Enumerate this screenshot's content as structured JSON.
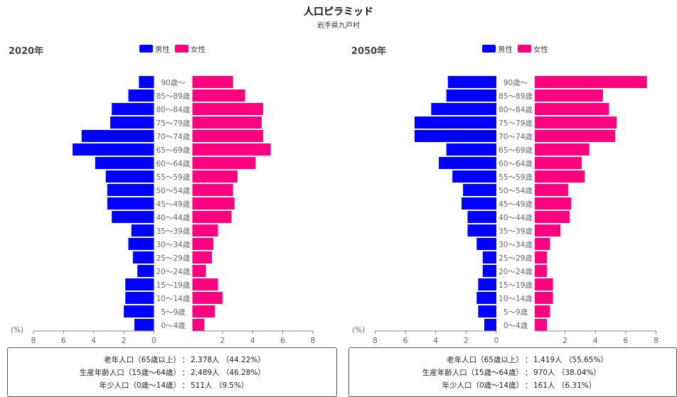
{
  "title": "人口ピラミッド",
  "subtitle": "岩手県九戸村",
  "axis_unit": "(%)",
  "legend": {
    "male": "男性",
    "female": "女性"
  },
  "colors": {
    "male": "#0000ff",
    "female": "#ff0080",
    "axis": "#888888",
    "text": "#666666"
  },
  "chart_data": [
    {
      "type": "bar",
      "title": "2020年",
      "categories": [
        "90歳～",
        "85～89歳",
        "80～84歳",
        "75～79歳",
        "70～74歳",
        "65～69歳",
        "60～64歳",
        "55～59歳",
        "50～54歳",
        "45～49歳",
        "40～44歳",
        "35～39歳",
        "30～34歳",
        "25～29歳",
        "20～24歳",
        "15～19歳",
        "10～14歳",
        "5～9歳",
        "0～4歳"
      ],
      "series": [
        {
          "name": "男性",
          "values": [
            1.0,
            1.7,
            2.8,
            2.9,
            4.8,
            5.4,
            3.9,
            3.2,
            3.1,
            3.1,
            2.8,
            1.5,
            1.7,
            1.4,
            1.1,
            1.9,
            1.9,
            2.0,
            1.3
          ]
        },
        {
          "name": "女性",
          "values": [
            2.7,
            3.5,
            4.7,
            4.6,
            4.7,
            5.2,
            4.2,
            3.0,
            2.7,
            2.8,
            2.6,
            1.7,
            1.4,
            1.3,
            0.9,
            1.7,
            2.0,
            1.5,
            0.8
          ]
        }
      ],
      "xlim": [
        0,
        8
      ],
      "ticks": [
        "8",
        "6",
        "4",
        "2",
        "0",
        "2",
        "4",
        "6",
        "8"
      ],
      "summary": [
        {
          "label": "老年人口（65歳以上）",
          "value": "2,378人 （44.22%）"
        },
        {
          "label": "生産年齢人口（15歳～64歳）",
          "value": "2,489人 （46.28%）"
        },
        {
          "label": "年少人口（0歳～14歳）",
          "value": "511人 （9.5%）"
        }
      ]
    },
    {
      "type": "bar",
      "title": "2050年",
      "categories": [
        "90歳～",
        "85～89歳",
        "80～84歳",
        "75～79歳",
        "70～74歳",
        "65～69歳",
        "60～64歳",
        "55～59歳",
        "50～54歳",
        "45～49歳",
        "40～44歳",
        "35～39歳",
        "30～34歳",
        "25～29歳",
        "20～24歳",
        "15～19歳",
        "10～14歳",
        "5～9歳",
        "0～4歳"
      ],
      "series": [
        {
          "name": "男性",
          "values": [
            3.2,
            3.3,
            4.3,
            5.4,
            5.4,
            3.3,
            3.8,
            2.9,
            2.2,
            2.3,
            1.9,
            1.9,
            1.3,
            0.9,
            0.9,
            1.2,
            1.3,
            1.2,
            0.8
          ]
        },
        {
          "name": "女性",
          "values": [
            7.4,
            4.5,
            4.9,
            5.4,
            5.3,
            3.6,
            3.1,
            3.3,
            2.2,
            2.4,
            2.3,
            1.7,
            1.0,
            0.8,
            0.8,
            1.2,
            1.2,
            1.0,
            0.8
          ]
        }
      ],
      "xlim": [
        0,
        8
      ],
      "ticks": [
        "8",
        "6",
        "4",
        "2",
        "0",
        "2",
        "4",
        "6",
        "8"
      ],
      "summary": [
        {
          "label": "老年人口（65歳以上）",
          "value": "1,419人 （55.65%）"
        },
        {
          "label": "生産年齢人口（15歳～64歳）",
          "value": "970人 （38.04%）"
        },
        {
          "label": "年少人口（0歳～14歳）",
          "value": "161人 （6.31%）"
        }
      ]
    }
  ]
}
